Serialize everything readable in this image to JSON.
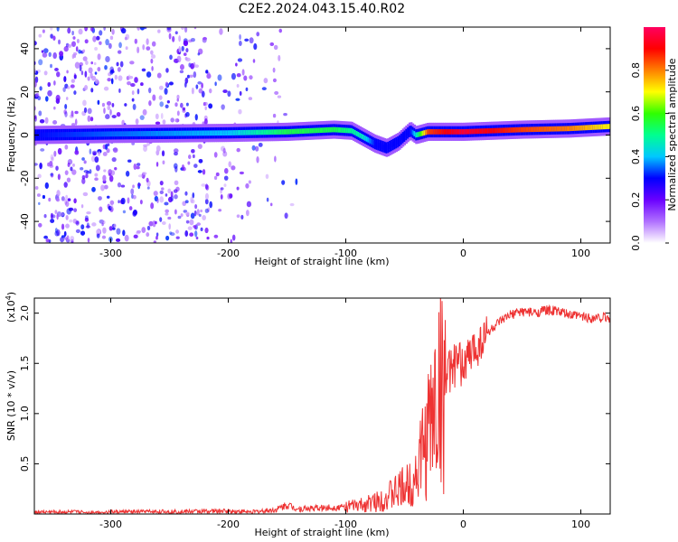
{
  "title": "C2E2.2024.043.15.40.R02",
  "chart_data": [
    {
      "type": "heatmap",
      "xlabel": "Height of straight line (km)",
      "ylabel": "Frequency (Hz)",
      "xlim": [
        -365,
        125
      ],
      "ylim": [
        -50,
        50
      ],
      "x_ticks": [
        -300,
        -200,
        -100,
        0,
        100
      ],
      "x_tick_labels": [
        "-300",
        "-200",
        "-100",
        "0",
        "100"
      ],
      "y_ticks": [
        -40,
        -20,
        0,
        20,
        40
      ],
      "y_tick_labels": [
        "-40",
        "-20",
        "0",
        "20",
        "40"
      ],
      "grid": false,
      "colorbar": {
        "label": "Normalized spectral amplitude",
        "range": [
          0,
          1
        ],
        "ticks": [
          0.0,
          0.2,
          0.4,
          0.6,
          0.8
        ],
        "tick_labels": [
          "0.0",
          "0.2",
          "0.4",
          "0.6",
          "0.8"
        ],
        "colors": [
          "#ffffff",
          "#b070ff",
          "#6a00ff",
          "#0000ff",
          "#00c8ff",
          "#00ff90",
          "#30ff00",
          "#ffff00",
          "#ff8000",
          "#ff0000",
          "#ff0060"
        ]
      },
      "ridge": {
        "x": [
          -365,
          -300,
          -200,
          -150,
          -110,
          -95,
          -85,
          -75,
          -65,
          -55,
          -45,
          -40,
          -30,
          0,
          50,
          90,
          125
        ],
        "y": [
          0,
          0.5,
          1,
          1.5,
          2.5,
          2,
          -1,
          -4,
          -6,
          -3,
          2,
          0,
          1.5,
          1.5,
          2.5,
          3,
          4
        ],
        "amplitude": [
          0.3,
          0.35,
          0.4,
          0.55,
          0.55,
          0.5,
          0.45,
          0.3,
          0.3,
          0.3,
          0.3,
          0.45,
          0.85,
          0.95,
          0.85,
          0.8,
          0.7
        ]
      },
      "scatter_noise_region": [
        -365,
        -140
      ]
    },
    {
      "type": "line",
      "series": [
        {
          "color": "#ee3333",
          "x": [
            -365,
            -320,
            -280,
            -240,
            -200,
            -180,
            -160,
            -150,
            -140,
            -120,
            -100,
            -85,
            -75,
            -65,
            -55,
            -45,
            -40,
            -35,
            -30,
            -25,
            -20,
            -15,
            -10,
            -5,
            0,
            10,
            20,
            30,
            40,
            50,
            60,
            70,
            80,
            90,
            100,
            110,
            120,
            125
          ],
          "y": [
            200,
            180,
            220,
            240,
            300,
            200,
            400,
            900,
            500,
            600,
            700,
            900,
            1200,
            1700,
            2300,
            3000,
            4200,
            6000,
            8000,
            10500,
            12500,
            13500,
            14500,
            15000,
            14800,
            16500,
            18000,
            19000,
            19800,
            20200,
            20000,
            20300,
            20200,
            19800,
            19700,
            19500,
            19600,
            19500
          ]
        }
      ],
      "xlabel": "Height of straight line (km)",
      "ylabel": "SNR (10 * v/v)",
      "xlim": [
        -365,
        125
      ],
      "ylim": [
        0,
        21500
      ],
      "x_ticks": [
        -300,
        -200,
        -100,
        0,
        100
      ],
      "x_tick_labels": [
        "-300",
        "-200",
        "-100",
        "0",
        "100"
      ],
      "y_ticks": [
        5000,
        10000,
        15000,
        20000
      ],
      "y_tick_labels": [
        "0.5",
        "1.0",
        "1.5",
        "2.0"
      ],
      "y_multiplier_label": "(x10",
      "y_multiplier_exponent": "4",
      "y_multiplier_close": ")",
      "grid": false
    }
  ]
}
